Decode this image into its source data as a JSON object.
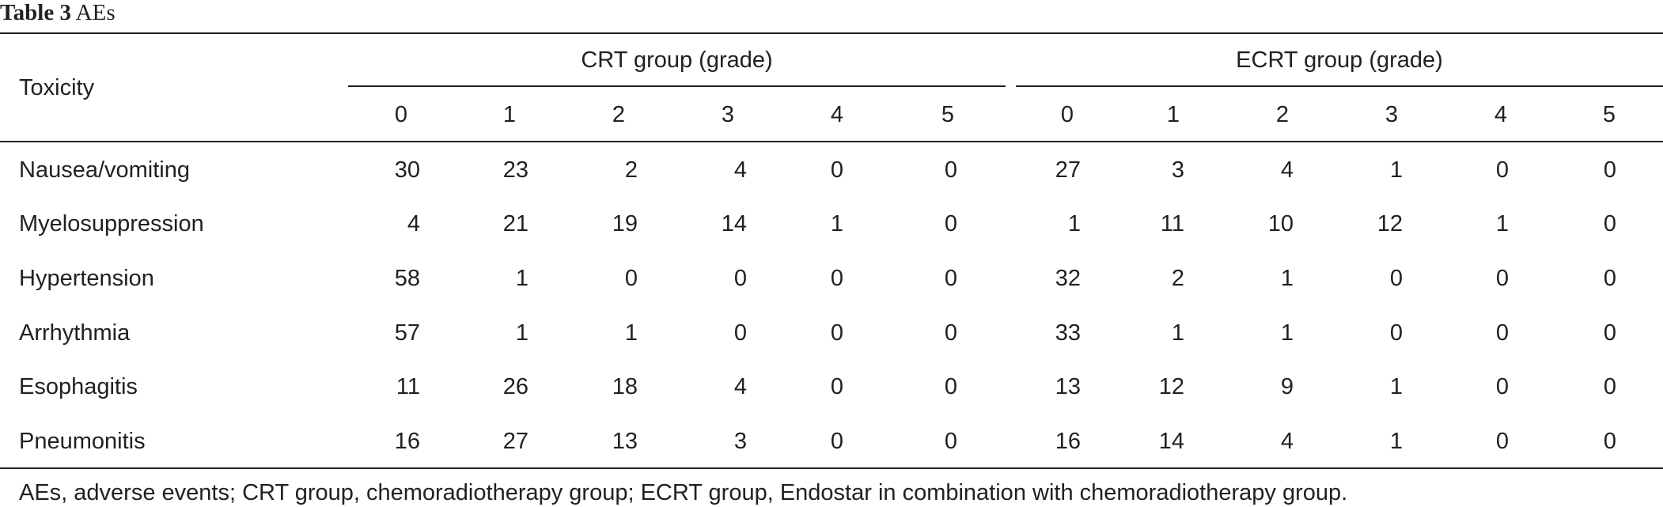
{
  "caption": {
    "label": "Table 3",
    "title": "AEs"
  },
  "header": {
    "toxicity": "Toxicity",
    "groups": [
      {
        "title": "CRT group (grade)",
        "grades": [
          "0",
          "1",
          "2",
          "3",
          "4",
          "5"
        ]
      },
      {
        "title": "ECRT group (grade)",
        "grades": [
          "0",
          "1",
          "2",
          "3",
          "4",
          "5"
        ]
      }
    ]
  },
  "rows": [
    {
      "label": "Nausea/vomiting",
      "values": [
        "30",
        "23",
        "2",
        "4",
        "0",
        "0",
        "27",
        "3",
        "4",
        "1",
        "0",
        "0"
      ]
    },
    {
      "label": "Myelosuppression",
      "values": [
        "4",
        "21",
        "19",
        "14",
        "1",
        "0",
        "1",
        "11",
        "10",
        "12",
        "1",
        "0"
      ]
    },
    {
      "label": "Hypertension",
      "values": [
        "58",
        "1",
        "0",
        "0",
        "0",
        "0",
        "32",
        "2",
        "1",
        "0",
        "0",
        "0"
      ]
    },
    {
      "label": "Arrhythmia",
      "values": [
        "57",
        "1",
        "1",
        "0",
        "0",
        "0",
        "33",
        "1",
        "1",
        "0",
        "0",
        "0"
      ]
    },
    {
      "label": "Esophagitis",
      "values": [
        "11",
        "26",
        "18",
        "4",
        "0",
        "0",
        "13",
        "12",
        "9",
        "1",
        "0",
        "0"
      ]
    },
    {
      "label": "Pneumonitis",
      "values": [
        "16",
        "27",
        "13",
        "3",
        "0",
        "0",
        "16",
        "14",
        "4",
        "1",
        "0",
        "0"
      ]
    }
  ],
  "footnote": "AEs, adverse events; CRT group, chemoradiotherapy group; ECRT group, Endostar in combination with chemoradiotherapy group."
}
